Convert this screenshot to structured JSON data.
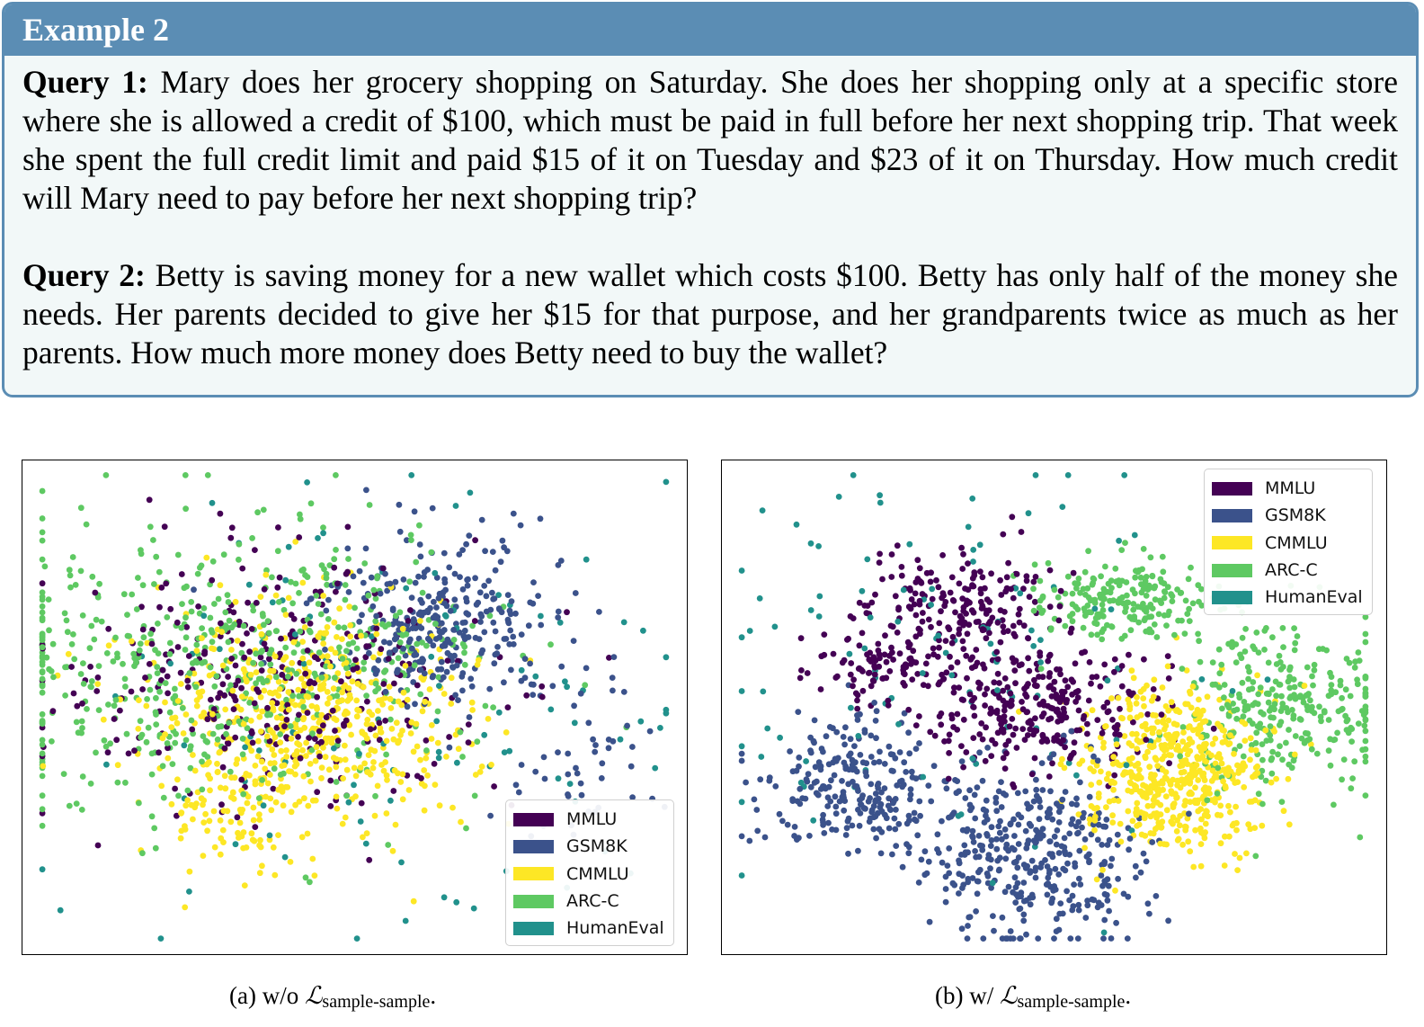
{
  "example": {
    "header": "Example 2",
    "queries": [
      {
        "label": "Query 1:",
        "text": "Mary does her grocery shopping on Saturday. She does her shopping only at a specific store where she is allowed a credit of $100, which must be paid in full before her next shopping trip. That week she spent the full credit limit and paid $15 of it on Tuesday and $23 of it on Thursday. How much credit will Mary need to pay before her next shopping trip?"
      },
      {
        "label": "Query 2:",
        "text": "Betty is saving money for a new wallet which costs $100. Betty has only half of the money she needs. Her parents decided to give her $15 for that purpose, and her grandparents twice as much as her parents. How much more money does Betty need to buy the wallet?"
      }
    ]
  },
  "chart_data": [
    {
      "type": "scatter",
      "panel": "a",
      "legend_position": "lower-right",
      "axes_visible": false,
      "series": [
        {
          "name": "MMLU",
          "color": "#440154",
          "clusters": [
            {
              "cx": 0.36,
              "cy": 0.45,
              "sx": 0.16,
              "sy": 0.13,
              "n": 330
            }
          ]
        },
        {
          "name": "GSM8K",
          "color": "#3b528b",
          "clusters": [
            {
              "cx": 0.62,
              "cy": 0.33,
              "sx": 0.09,
              "sy": 0.08,
              "n": 300
            },
            {
              "cx": 0.84,
              "cy": 0.6,
              "sx": 0.06,
              "sy": 0.1,
              "n": 50
            }
          ]
        },
        {
          "name": "CMMLU",
          "color": "#fde725",
          "clusters": [
            {
              "cx": 0.43,
              "cy": 0.52,
              "sx": 0.12,
              "sy": 0.11,
              "n": 560
            },
            {
              "cx": 0.33,
              "cy": 0.72,
              "sx": 0.05,
              "sy": 0.07,
              "n": 70
            }
          ]
        },
        {
          "name": "ARC-C",
          "color": "#5ec962",
          "clusters": [
            {
              "cx": 0.26,
              "cy": 0.42,
              "sx": 0.17,
              "sy": 0.15,
              "n": 430
            },
            {
              "cx": 0.5,
              "cy": 0.35,
              "sx": 0.14,
              "sy": 0.12,
              "n": 120
            }
          ]
        },
        {
          "name": "HumanEval",
          "color": "#21918c",
          "clusters": [
            {
              "cx": 0.55,
              "cy": 0.5,
              "sx": 0.25,
              "sy": 0.22,
              "n": 110
            }
          ]
        }
      ]
    },
    {
      "type": "scatter",
      "panel": "b",
      "legend_position": "upper-right",
      "axes_visible": false,
      "series": [
        {
          "name": "MMLU",
          "color": "#440154",
          "clusters": [
            {
              "cx": 0.36,
              "cy": 0.3,
              "sx": 0.07,
              "sy": 0.06,
              "n": 200
            },
            {
              "cx": 0.47,
              "cy": 0.5,
              "sx": 0.09,
              "sy": 0.06,
              "n": 300
            },
            {
              "cx": 0.24,
              "cy": 0.42,
              "sx": 0.05,
              "sy": 0.03,
              "n": 80
            }
          ]
        },
        {
          "name": "GSM8K",
          "color": "#3b528b",
          "clusters": [
            {
              "cx": 0.2,
              "cy": 0.66,
              "sx": 0.07,
              "sy": 0.07,
              "n": 250
            },
            {
              "cx": 0.47,
              "cy": 0.8,
              "sx": 0.08,
              "sy": 0.1,
              "n": 380
            }
          ]
        },
        {
          "name": "CMMLU",
          "color": "#fde725",
          "clusters": [
            {
              "cx": 0.68,
              "cy": 0.63,
              "sx": 0.07,
              "sy": 0.08,
              "n": 550
            }
          ]
        },
        {
          "name": "ARC-C",
          "color": "#5ec962",
          "clusters": [
            {
              "cx": 0.6,
              "cy": 0.28,
              "sx": 0.06,
              "sy": 0.04,
              "n": 200
            },
            {
              "cx": 0.85,
              "cy": 0.5,
              "sx": 0.08,
              "sy": 0.08,
              "n": 300
            }
          ]
        },
        {
          "name": "HumanEval",
          "color": "#21918c",
          "clusters": [
            {
              "cx": 0.35,
              "cy": 0.4,
              "sx": 0.2,
              "sy": 0.2,
              "n": 110
            }
          ]
        }
      ]
    }
  ],
  "captions": [
    {
      "prefix": "(a) w/o ",
      "loss_symbol": "ℒ",
      "loss_sub": "sample-sample",
      "suffix": "."
    },
    {
      "prefix": "(b) w/ ",
      "loss_symbol": "ℒ",
      "loss_sub": "sample-sample",
      "suffix": "."
    }
  ]
}
